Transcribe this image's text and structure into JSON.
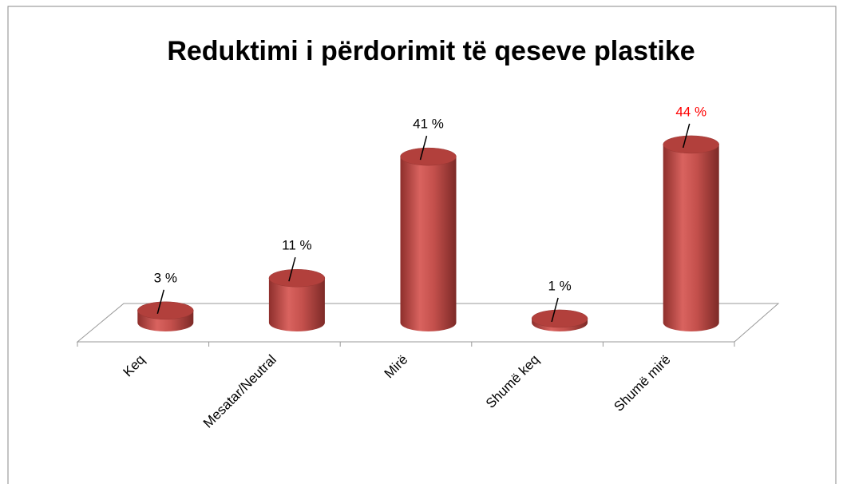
{
  "chart_data": {
    "type": "bar3d",
    "title": "Reduktimi i përdorimit të qeseve plastike",
    "categories": [
      "Keq",
      "Mesatar/Neutral",
      "Mirë",
      "Shumë keq",
      "Shumë mirë"
    ],
    "values": [
      3,
      11,
      41,
      1,
      44
    ],
    "value_labels": [
      "3 %",
      "11 %",
      "41 %",
      "1 %",
      "44 %"
    ],
    "value_label_colors": [
      "#000000",
      "#000000",
      "#000000",
      "#000000",
      "#ff0000"
    ],
    "color": "#c0504d"
  }
}
